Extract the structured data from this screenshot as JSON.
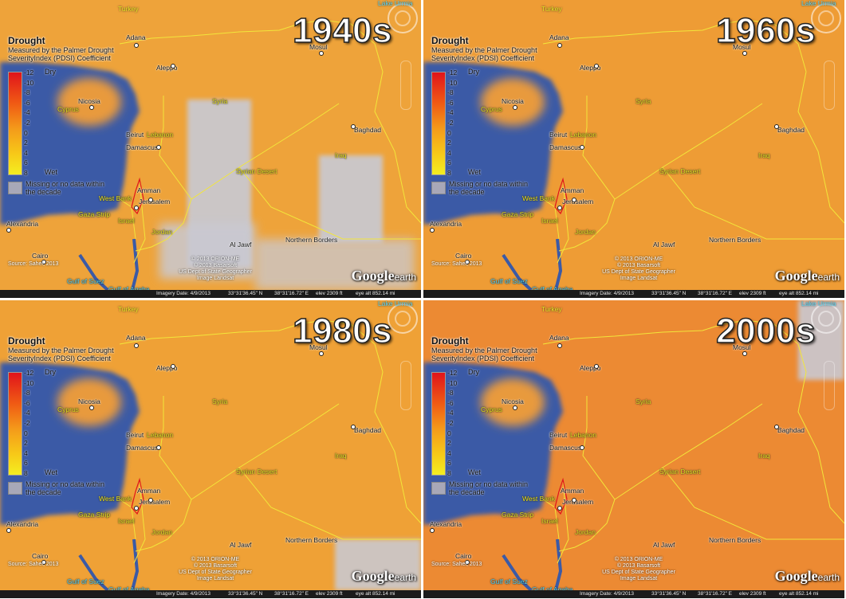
{
  "legend": {
    "title": "Drought",
    "subtitle": "Measured by the Palmer Drought SeverityIndex (PDSI) Coefficient",
    "ticks": [
      "-12",
      "-10",
      "-8",
      "-6",
      "-4",
      "-2",
      "0",
      "2",
      "4",
      "6",
      "8"
    ],
    "dry": "Dry",
    "wet": "Wet",
    "missing": "Missing or no data within the decade",
    "colors": [
      "#e0141b",
      "#f05a14",
      "#f49a1a",
      "#f7c918",
      "#f4ee20"
    ],
    "missing_color": "#a8a8b8"
  },
  "labels": {
    "turkey": "Turkey",
    "lake_urmia": "Lake Urmia",
    "adana": "Adana",
    "aleppo": "Aleppo",
    "mosul": "Mosul",
    "syria": "Syria",
    "nicosia": "Nicosia",
    "cyprus": "Cyprus",
    "beirut": "Beirut",
    "lebanon": "Lebanon",
    "damascus": "Damascus",
    "baghdad": "Baghdad",
    "iraq": "Iraq",
    "syrian_desert": "Syrian Desert",
    "amman": "Amman",
    "west_bank": "West Bank",
    "jerusalem": "Jerusalem",
    "gaza_strip": "Gaza Strip",
    "israel": "Israel",
    "jordan": "Jordan",
    "alexandria": "Alexandria",
    "al_jawf": "Al Jawf",
    "northern_borders": "Northern Borders",
    "cairo": "Cairo",
    "gulf_suez": "Gulf of Suez",
    "gulf_aqaba": "Gulf of Aqaba"
  },
  "source": "Source: Sahel, 2013",
  "credits_line1": "© 2013 ORION-ME",
  "credits_line2": "© 2013 Basarsoft",
  "credits_line3": "US Dept of State Geographer",
  "credits_line4": "Image Landsat",
  "credits_2000_line1": "© 2013 ORION-ME",
  "google_earth": "Google",
  "google_earth_suffix": "earth",
  "status": {
    "imagery": "Imagery Date: 4/9/2013",
    "lat": "33°31'36.45\" N",
    "lon": "38°31'16.72\" E",
    "elev": "elev 2309 ft",
    "eye": "eye alt 852.14 mi"
  },
  "panels": [
    {
      "decade": "1940s",
      "land_color": "#eea33a",
      "missing_regions": [
        "syria-south",
        "iraq-west",
        "jordan-east",
        "saudi-border"
      ]
    },
    {
      "decade": "1960s",
      "land_color": "#ee9c35",
      "missing_regions": []
    },
    {
      "decade": "1980s",
      "land_color": "#efa136",
      "missing_regions": [
        "saudi-border-bottom"
      ]
    },
    {
      "decade": "2000s",
      "land_color": "#ec8a33",
      "missing_regions": [
        "iran-northeast"
      ]
    }
  ]
}
